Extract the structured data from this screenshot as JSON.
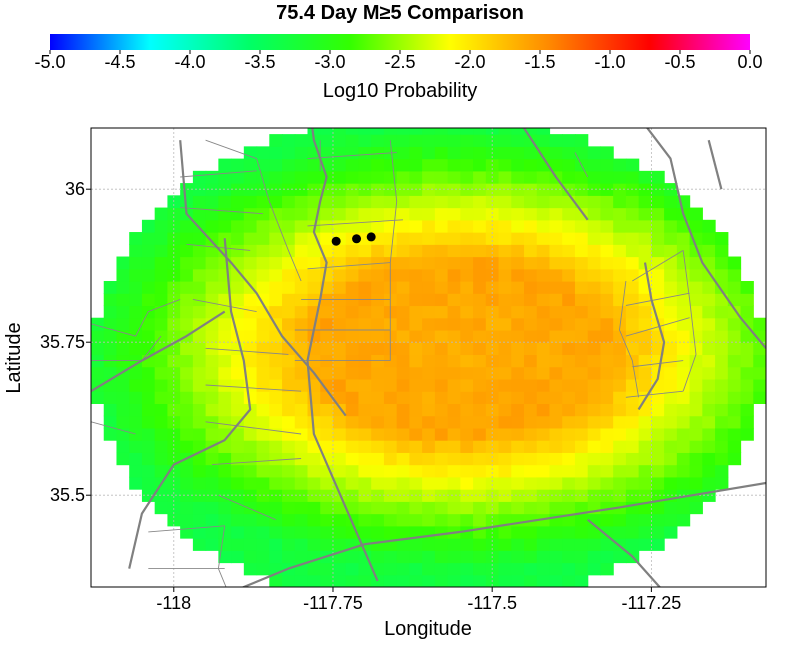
{
  "chart_data": {
    "type": "heatmap",
    "title": "75.4 Day M≥5 Comparison",
    "xlabel": "Longitude",
    "ylabel": "Latitude",
    "xlim": [
      -118.13,
      -117.07
    ],
    "ylim": [
      35.35,
      36.1
    ],
    "x_ticks": [
      -118,
      -117.75,
      -117.5,
      -117.25
    ],
    "x_tick_labels": [
      "-118",
      "-117.75",
      "-117.5",
      "-117.25"
    ],
    "y_ticks": [
      35.5,
      35.75,
      36
    ],
    "y_tick_labels": [
      "35.5",
      "35.75",
      "36"
    ],
    "grid": true,
    "colorbar": {
      "label": "Log10 Probability",
      "range": [
        -5.0,
        0.0
      ],
      "ticks": [
        -5.0,
        -4.5,
        -4.0,
        -3.5,
        -3.0,
        -2.5,
        -2.0,
        -1.5,
        -1.0,
        -0.5,
        0.0
      ],
      "tick_labels": [
        "-5.0",
        "-4.5",
        "-4.0",
        "-3.5",
        "-3.0",
        "-2.5",
        "-2.0",
        "-1.5",
        "-1.0",
        "-0.5",
        "0.0"
      ],
      "colors": [
        "#0000ff",
        "#00ffff",
        "#00ff66",
        "#33ff00",
        "#ffff00",
        "#ff8800",
        "#ff0000",
        "#ff00ff"
      ]
    },
    "field": {
      "grid_step": 0.02,
      "region_center": [
        -117.6,
        35.72
      ],
      "region_radius": [
        0.53,
        0.41
      ],
      "peak_center": [
        -117.55,
        35.74
      ],
      "peak_value": -1.6,
      "edge_value": -3.3,
      "plateau_radius": [
        0.23,
        0.14
      ],
      "falloff": [
        0.2,
        0.17
      ]
    },
    "events": [
      {
        "lon": -117.745,
        "lat": 35.915
      },
      {
        "lon": -117.713,
        "lat": 35.919
      },
      {
        "lon": -117.69,
        "lat": 35.922
      }
    ],
    "faults": [
      [
        [
          -117.79,
          36.16
        ],
        [
          -117.78,
          36.08
        ],
        [
          -117.76,
          36.02
        ],
        [
          -117.77,
          35.98
        ],
        [
          -117.78,
          35.93
        ],
        [
          -117.76,
          35.88
        ],
        [
          -117.77,
          35.82
        ],
        [
          -117.79,
          35.72
        ],
        [
          -117.78,
          35.6
        ],
        [
          -117.73,
          35.48
        ],
        [
          -117.68,
          35.36
        ]
      ],
      [
        [
          -117.99,
          36.08
        ],
        [
          -117.98,
          35.96
        ],
        [
          -117.91,
          35.88
        ],
        [
          -117.87,
          35.83
        ],
        [
          -117.83,
          35.76
        ],
        [
          -117.78,
          35.7
        ],
        [
          -117.73,
          35.63
        ]
      ],
      [
        [
          -118.13,
          35.67
        ],
        [
          -118.05,
          35.72
        ],
        [
          -117.98,
          35.76
        ],
        [
          -117.92,
          35.8
        ]
      ],
      [
        [
          -117.92,
          35.92
        ],
        [
          -117.91,
          35.8
        ],
        [
          -117.89,
          35.72
        ],
        [
          -117.88,
          35.64
        ],
        [
          -117.92,
          35.59
        ],
        [
          -118.0,
          35.55
        ],
        [
          -118.05,
          35.47
        ],
        [
          -118.07,
          35.38
        ]
      ],
      [
        [
          -118.0,
          35.28
        ],
        [
          -117.89,
          35.35
        ],
        [
          -117.82,
          35.38
        ],
        [
          -117.7,
          35.42
        ],
        [
          -117.55,
          35.44
        ],
        [
          -117.3,
          35.48
        ],
        [
          -117.07,
          35.52
        ]
      ],
      [
        [
          -117.5,
          36.18
        ],
        [
          -117.45,
          36.1
        ],
        [
          -117.4,
          36.02
        ],
        [
          -117.35,
          35.95
        ]
      ],
      [
        [
          -117.3,
          36.16
        ],
        [
          -117.22,
          36.05
        ],
        [
          -117.2,
          35.96
        ],
        [
          -117.17,
          35.88
        ],
        [
          -117.11,
          35.79
        ],
        [
          -117.07,
          35.74
        ]
      ],
      [
        [
          -117.26,
          35.88
        ],
        [
          -117.25,
          35.82
        ],
        [
          -117.23,
          35.75
        ],
        [
          -117.24,
          35.69
        ],
        [
          -117.27,
          35.64
        ]
      ],
      [
        [
          -117.35,
          35.46
        ],
        [
          -117.28,
          35.4
        ],
        [
          -117.22,
          35.33
        ]
      ],
      [
        [
          -117.16,
          36.08
        ],
        [
          -117.14,
          36.0
        ]
      ]
    ],
    "thin_faults": [
      [
        [
          -117.95,
          36.08
        ],
        [
          -117.87,
          36.05
        ],
        [
          -117.85,
          35.98
        ],
        [
          -117.82,
          35.9
        ],
        [
          -117.8,
          35.85
        ]
      ],
      [
        [
          -117.79,
          35.94
        ],
        [
          -117.64,
          35.95
        ]
      ],
      [
        [
          -117.79,
          35.87
        ],
        [
          -117.66,
          35.88
        ]
      ],
      [
        [
          -117.8,
          35.82
        ],
        [
          -117.66,
          35.82
        ]
      ],
      [
        [
          -117.81,
          35.77
        ],
        [
          -117.66,
          35.77
        ]
      ],
      [
        [
          -117.81,
          35.72
        ],
        [
          -117.66,
          35.72
        ]
      ],
      [
        [
          -117.66,
          36.08
        ],
        [
          -117.65,
          35.98
        ],
        [
          -117.66,
          35.88
        ],
        [
          -117.66,
          35.79
        ],
        [
          -117.66,
          35.72
        ]
      ],
      [
        [
          -117.99,
          36.02
        ],
        [
          -117.87,
          36.03
        ]
      ],
      [
        [
          -117.99,
          35.97
        ],
        [
          -117.86,
          35.96
        ]
      ],
      [
        [
          -117.98,
          35.91
        ],
        [
          -117.88,
          35.9
        ]
      ],
      [
        [
          -117.97,
          35.82
        ],
        [
          -117.87,
          35.8
        ]
      ],
      [
        [
          -117.95,
          35.74
        ],
        [
          -117.82,
          35.73
        ]
      ],
      [
        [
          -117.95,
          35.68
        ],
        [
          -117.8,
          35.67
        ]
      ],
      [
        [
          -117.95,
          35.62
        ],
        [
          -117.8,
          35.6
        ]
      ],
      [
        [
          -117.94,
          35.55
        ],
        [
          -117.8,
          35.56
        ]
      ],
      [
        [
          -117.93,
          35.5
        ],
        [
          -117.84,
          35.46
        ]
      ],
      [
        [
          -117.92,
          35.45
        ],
        [
          -117.93,
          35.38
        ],
        [
          -117.91,
          35.33
        ]
      ],
      [
        [
          -118.04,
          35.44
        ],
        [
          -117.92,
          35.45
        ]
      ],
      [
        [
          -118.04,
          35.38
        ],
        [
          -117.92,
          35.38
        ]
      ],
      [
        [
          -118.13,
          35.78
        ],
        [
          -118.06,
          35.76
        ],
        [
          -118.04,
          35.8
        ],
        [
          -117.99,
          35.82
        ]
      ],
      [
        [
          -118.13,
          35.72
        ],
        [
          -118.05,
          35.72
        ],
        [
          -118.02,
          35.76
        ]
      ],
      [
        [
          -118.13,
          35.62
        ],
        [
          -118.06,
          35.6
        ]
      ],
      [
        [
          -117.77,
          36.08
        ],
        [
          -117.77,
          36.03
        ]
      ],
      [
        [
          -117.79,
          36.05
        ],
        [
          -117.65,
          36.06
        ]
      ],
      [
        [
          -117.28,
          35.85
        ],
        [
          -117.2,
          35.9
        ]
      ],
      [
        [
          -117.29,
          35.81
        ],
        [
          -117.19,
          35.83
        ]
      ],
      [
        [
          -117.29,
          35.76
        ],
        [
          -117.19,
          35.79
        ]
      ],
      [
        [
          -117.28,
          35.71
        ],
        [
          -117.2,
          35.72
        ]
      ],
      [
        [
          -117.29,
          35.66
        ],
        [
          -117.2,
          35.67
        ]
      ],
      [
        [
          -117.29,
          35.85
        ],
        [
          -117.3,
          35.77
        ],
        [
          -117.28,
          35.72
        ],
        [
          -117.27,
          35.66
        ]
      ],
      [
        [
          -117.2,
          35.9
        ],
        [
          -117.19,
          35.82
        ],
        [
          -117.18,
          35.73
        ],
        [
          -117.2,
          35.67
        ]
      ],
      [
        [
          -117.37,
          36.06
        ],
        [
          -117.35,
          36.02
        ]
      ]
    ]
  }
}
